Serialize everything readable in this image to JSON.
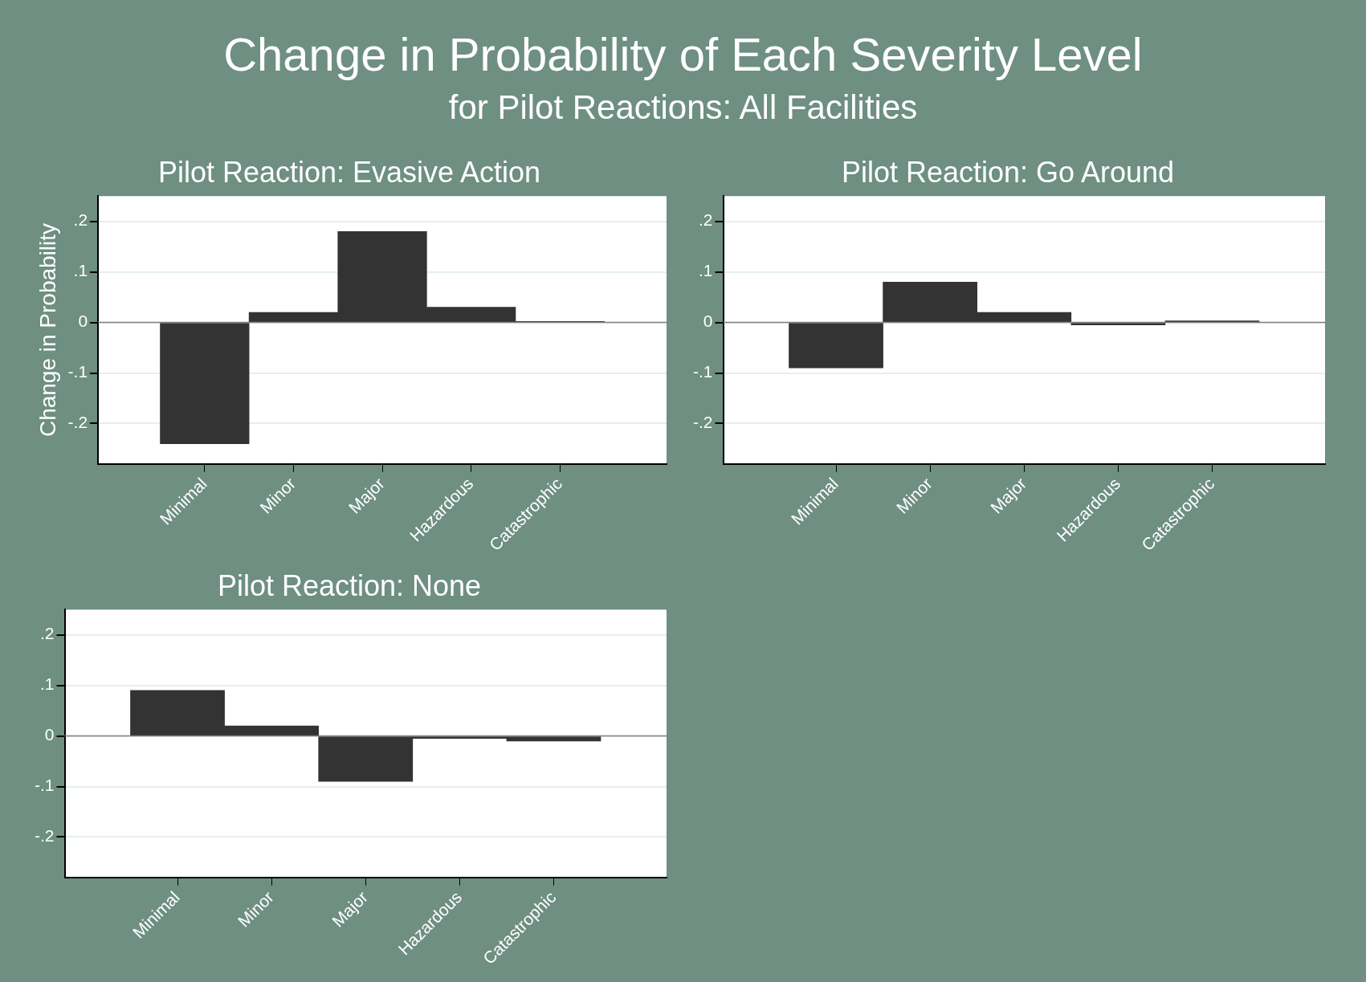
{
  "chart_data": [
    {
      "type": "bar",
      "annotations": [
        "Change in Probability of Each Severity Level",
        "for Pilot Reactions: All Facilities"
      ],
      "title": "Pilot Reaction: Evasive Action",
      "ylabel": "Change in Probability",
      "categories": [
        "Minimal",
        "Minor",
        "Major",
        "Hazardous",
        "Catastrophic"
      ],
      "values": [
        -0.24,
        0.02,
        0.18,
        0.03,
        0.002
      ],
      "color": "#333333",
      "ylim": [
        -0.28,
        0.25
      ],
      "yticks": [
        {
          "value": -0.2,
          "label": "-.2"
        },
        {
          "value": -0.1,
          "label": "-.1"
        },
        {
          "value": 0,
          "label": "0"
        },
        {
          "value": 0.1,
          "label": ".1"
        },
        {
          "value": 0.2,
          "label": ".2"
        }
      ],
      "grid": "y",
      "ref_lines": [
        {
          "axis": "y",
          "value": 0,
          "color": "#808080"
        }
      ]
    },
    {
      "type": "bar",
      "title": "Pilot Reaction: Go Around",
      "categories": [
        "Minimal",
        "Minor",
        "Major",
        "Hazardous",
        "Catastrophic"
      ],
      "values": [
        -0.09,
        0.08,
        0.02,
        -0.005,
        0.003
      ],
      "color": "#333333",
      "ylim": [
        -0.28,
        0.25
      ],
      "yticks": [
        {
          "value": -0.2,
          "label": "-.2"
        },
        {
          "value": -0.1,
          "label": "-.1"
        },
        {
          "value": 0,
          "label": "0"
        },
        {
          "value": 0.1,
          "label": ".1"
        },
        {
          "value": 0.2,
          "label": ".2"
        }
      ],
      "grid": "y",
      "ref_lines": [
        {
          "axis": "y",
          "value": 0,
          "color": "#808080"
        }
      ]
    },
    {
      "type": "bar",
      "title": "Pilot Reaction: None",
      "categories": [
        "Minimal",
        "Minor",
        "Major",
        "Hazardous",
        "Catastrophic"
      ],
      "values": [
        0.09,
        0.02,
        -0.09,
        -0.005,
        -0.01
      ],
      "color": "#333333",
      "ylim": [
        -0.28,
        0.25
      ],
      "yticks": [
        {
          "value": -0.2,
          "label": "-.2"
        },
        {
          "value": -0.1,
          "label": "-.1"
        },
        {
          "value": 0,
          "label": "0"
        },
        {
          "value": 0.1,
          "label": ".1"
        },
        {
          "value": 0.2,
          "label": ".2"
        }
      ],
      "grid": "y",
      "ref_lines": [
        {
          "axis": "y",
          "value": 0,
          "color": "#808080"
        }
      ]
    }
  ]
}
